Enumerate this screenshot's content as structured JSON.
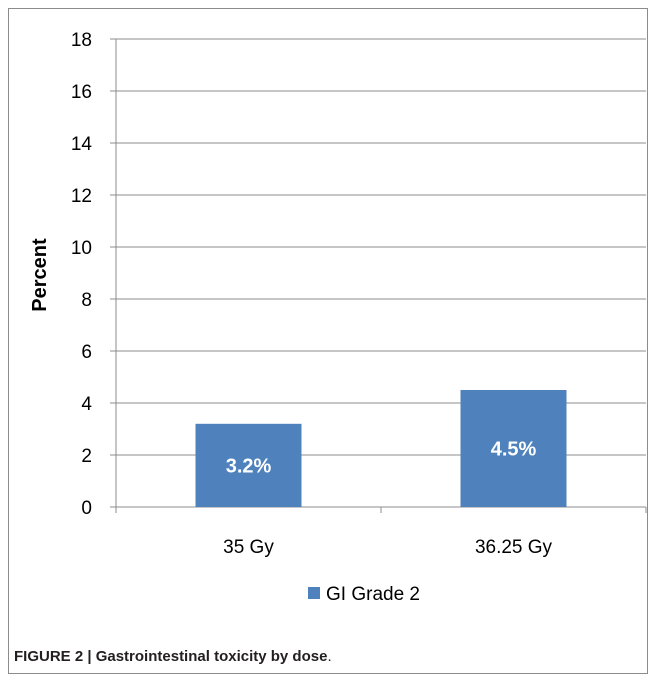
{
  "chart_data": {
    "type": "bar",
    "categories": [
      "35 Gy",
      "36.25 Gy"
    ],
    "series": [
      {
        "name": "GI Grade 2",
        "values": [
          3.2,
          4.5
        ],
        "data_labels": [
          "3.2%",
          "4.5%"
        ]
      }
    ],
    "title": "",
    "xlabel": "",
    "ylabel": "Percent",
    "ylim": [
      0,
      18
    ],
    "yticks": [
      0,
      2,
      4,
      6,
      8,
      10,
      12,
      14,
      16,
      18
    ],
    "grid": true,
    "legend_position": "bottom",
    "colors": {
      "bar": "#4f81bd",
      "grid": "#8c8c8c",
      "axis": "#8c8c8c",
      "text": "#000000"
    }
  },
  "caption": {
    "label": "FIGURE 2 | Gastrointestinal toxicity by dose",
    "suffix": "."
  }
}
